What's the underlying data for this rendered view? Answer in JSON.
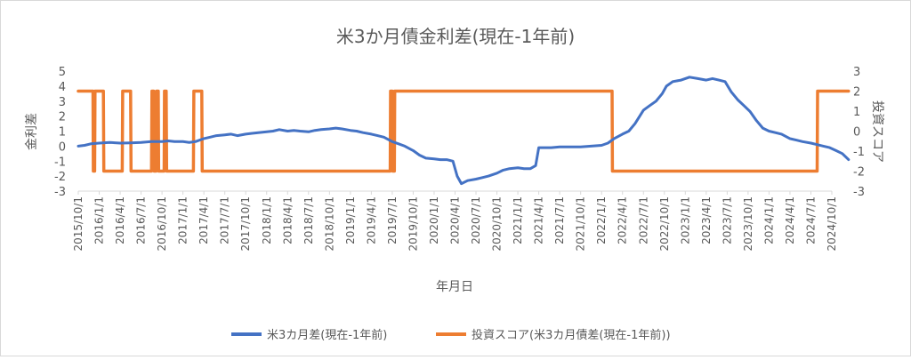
{
  "chart_data": {
    "type": "line",
    "title": "米3か月債金利差(現在-1年前)",
    "xlabel": "年月日",
    "ylabel_left": "金利差",
    "ylabel_right": "投資スコア",
    "ylim_left": [
      -3,
      5
    ],
    "ylim_right": [
      -3,
      3
    ],
    "yticks_left": [
      "5",
      "4",
      "3",
      "2",
      "1",
      "0",
      "-1",
      "-2",
      "-3"
    ],
    "yticks_right": [
      "3",
      "2",
      "1",
      "0",
      "-1",
      "-2",
      "-3"
    ],
    "x_categories": [
      "2015/10/1",
      "2016/1/1",
      "2016/4/1",
      "2016/7/1",
      "2016/10/1",
      "2017/1/1",
      "2017/4/1",
      "2017/7/1",
      "2017/10/1",
      "2018/1/1",
      "2018/4/1",
      "2018/7/1",
      "2018/10/1",
      "2019/1/1",
      "2019/4/1",
      "2019/7/1",
      "2019/10/1",
      "2020/1/1",
      "2020/4/1",
      "2020/7/1",
      "2020/10/1",
      "2021/1/1",
      "2021/4/1",
      "2021/7/1",
      "2021/10/1",
      "2022/1/1",
      "2022/4/1",
      "2022/7/1",
      "2022/10/1",
      "2023/1/1",
      "2023/4/1",
      "2023/7/1",
      "2023/10/1",
      "2024/1/1",
      "2024/4/1",
      "2024/7/1",
      "2024/10/1"
    ],
    "grid": false,
    "legend_position": "bottom",
    "series": [
      {
        "name": "米3カ月差(現在-1年前)",
        "axis": "left",
        "color": "#4472C4",
        "points": [
          [
            0,
            0.0
          ],
          [
            0.3,
            0.05
          ],
          [
            0.6,
            0.15
          ],
          [
            1,
            0.2
          ],
          [
            1.5,
            0.25
          ],
          [
            2,
            0.2
          ],
          [
            2.5,
            0.22
          ],
          [
            3,
            0.25
          ],
          [
            3.5,
            0.3
          ],
          [
            4,
            0.3
          ],
          [
            4.3,
            0.35
          ],
          [
            4.6,
            0.3
          ],
          [
            5,
            0.3
          ],
          [
            5.3,
            0.25
          ],
          [
            5.6,
            0.3
          ],
          [
            6,
            0.5
          ],
          [
            6.3,
            0.6
          ],
          [
            6.6,
            0.7
          ],
          [
            7,
            0.75
          ],
          [
            7.3,
            0.8
          ],
          [
            7.6,
            0.7
          ],
          [
            8,
            0.8
          ],
          [
            8.3,
            0.85
          ],
          [
            8.6,
            0.9
          ],
          [
            9,
            0.95
          ],
          [
            9.3,
            1.0
          ],
          [
            9.6,
            1.1
          ],
          [
            10,
            1.0
          ],
          [
            10.3,
            1.05
          ],
          [
            10.6,
            1.0
          ],
          [
            11,
            0.95
          ],
          [
            11.3,
            1.05
          ],
          [
            11.6,
            1.1
          ],
          [
            12,
            1.15
          ],
          [
            12.3,
            1.2
          ],
          [
            12.6,
            1.15
          ],
          [
            13,
            1.05
          ],
          [
            13.3,
            1.0
          ],
          [
            13.6,
            0.9
          ],
          [
            14,
            0.8
          ],
          [
            14.3,
            0.7
          ],
          [
            14.6,
            0.6
          ],
          [
            15,
            0.3
          ],
          [
            15.3,
            0.15
          ],
          [
            15.6,
            0.0
          ],
          [
            16,
            -0.3
          ],
          [
            16.3,
            -0.6
          ],
          [
            16.6,
            -0.8
          ],
          [
            17,
            -0.85
          ],
          [
            17.3,
            -0.9
          ],
          [
            17.6,
            -0.9
          ],
          [
            17.9,
            -1.0
          ],
          [
            18.1,
            -2.0
          ],
          [
            18.3,
            -2.5
          ],
          [
            18.6,
            -2.3
          ],
          [
            19,
            -2.2
          ],
          [
            19.3,
            -2.1
          ],
          [
            19.6,
            -2.0
          ],
          [
            20,
            -1.8
          ],
          [
            20.3,
            -1.6
          ],
          [
            20.6,
            -1.5
          ],
          [
            21,
            -1.45
          ],
          [
            21.3,
            -1.5
          ],
          [
            21.6,
            -1.5
          ],
          [
            21.85,
            -1.3
          ],
          [
            22.0,
            -0.1
          ],
          [
            22.3,
            -0.1
          ],
          [
            22.6,
            -0.1
          ],
          [
            23,
            -0.05
          ],
          [
            23.5,
            -0.05
          ],
          [
            24,
            -0.05
          ],
          [
            24.5,
            0.0
          ],
          [
            25,
            0.05
          ],
          [
            25.3,
            0.2
          ],
          [
            25.6,
            0.5
          ],
          [
            26,
            0.8
          ],
          [
            26.3,
            1.0
          ],
          [
            26.6,
            1.5
          ],
          [
            27,
            2.4
          ],
          [
            27.3,
            2.7
          ],
          [
            27.6,
            3.0
          ],
          [
            27.9,
            3.5
          ],
          [
            28.1,
            4.0
          ],
          [
            28.4,
            4.3
          ],
          [
            28.8,
            4.4
          ],
          [
            29.2,
            4.6
          ],
          [
            29.6,
            4.5
          ],
          [
            30,
            4.4
          ],
          [
            30.3,
            4.5
          ],
          [
            30.6,
            4.4
          ],
          [
            30.9,
            4.3
          ],
          [
            31.2,
            3.6
          ],
          [
            31.5,
            3.1
          ],
          [
            31.8,
            2.7
          ],
          [
            32.1,
            2.3
          ],
          [
            32.4,
            1.7
          ],
          [
            32.7,
            1.2
          ],
          [
            33,
            1.0
          ],
          [
            33.3,
            0.9
          ],
          [
            33.6,
            0.8
          ],
          [
            34,
            0.5
          ],
          [
            34.3,
            0.4
          ],
          [
            34.6,
            0.3
          ],
          [
            35,
            0.2
          ],
          [
            35.3,
            0.1
          ],
          [
            35.6,
            0.0
          ],
          [
            35.9,
            -0.1
          ],
          [
            36.2,
            -0.3
          ],
          [
            36.5,
            -0.5
          ],
          [
            36.8,
            -0.9
          ]
        ]
      },
      {
        "name": "投資スコア(米3カ月債差(現在-1年前))",
        "axis": "right",
        "color": "#ED7D31",
        "points": [
          [
            0,
            2
          ],
          [
            0.7,
            2
          ],
          [
            0.72,
            -2
          ],
          [
            0.78,
            -2
          ],
          [
            0.8,
            2
          ],
          [
            1.2,
            2
          ],
          [
            1.22,
            -2
          ],
          [
            2.1,
            -2
          ],
          [
            2.12,
            2
          ],
          [
            2.5,
            2
          ],
          [
            2.52,
            -2
          ],
          [
            3.5,
            -2
          ],
          [
            3.52,
            2
          ],
          [
            3.6,
            2
          ],
          [
            3.62,
            -2
          ],
          [
            3.72,
            -2
          ],
          [
            3.74,
            2
          ],
          [
            3.82,
            2
          ],
          [
            3.84,
            -2
          ],
          [
            4.1,
            -2
          ],
          [
            4.12,
            2
          ],
          [
            4.2,
            2
          ],
          [
            4.22,
            -2
          ],
          [
            5.5,
            -2
          ],
          [
            5.52,
            2
          ],
          [
            5.9,
            2
          ],
          [
            5.92,
            -2
          ],
          [
            14.9,
            -2
          ],
          [
            14.92,
            2
          ],
          [
            15.0,
            2
          ],
          [
            15.02,
            -2
          ],
          [
            15.1,
            -2
          ],
          [
            15.12,
            2
          ],
          [
            25.5,
            2
          ],
          [
            25.52,
            -2
          ],
          [
            35.3,
            -2
          ],
          [
            35.32,
            2
          ],
          [
            36.8,
            2
          ]
        ]
      }
    ]
  }
}
